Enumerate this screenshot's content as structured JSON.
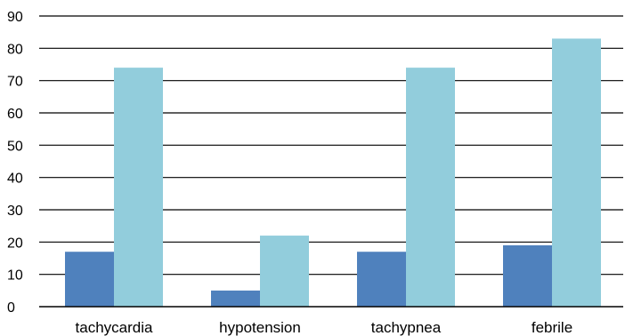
{
  "chart_data": {
    "type": "bar",
    "title": "",
    "xlabel": "",
    "ylabel": "",
    "categories": [
      "tachycardia",
      "hypotension",
      "tachypnea",
      "febrile"
    ],
    "series": [
      {
        "values": [
          17,
          5,
          17,
          19
        ],
        "color": "#4f81bd"
      },
      {
        "values": [
          74,
          22,
          74,
          83
        ],
        "color": "#92cddc"
      }
    ],
    "ylim": [
      0,
      90
    ],
    "yticks": [
      0,
      10,
      20,
      30,
      40,
      50,
      60,
      70,
      80,
      90
    ],
    "grid": true,
    "legend": "none"
  }
}
